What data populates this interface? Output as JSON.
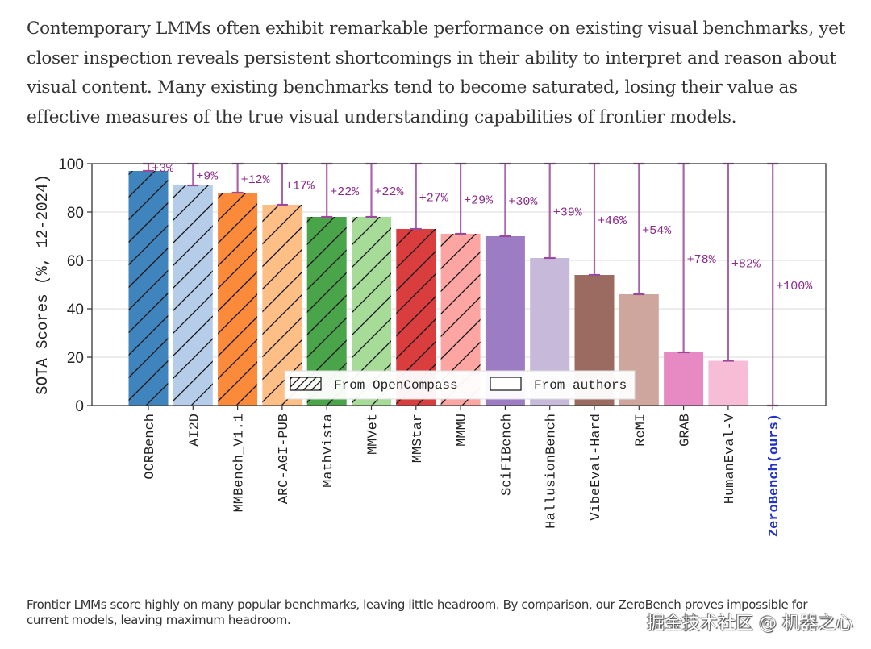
{
  "intro_paragraph": "Contemporary LMMs often exhibit remarkable performance on existing visual benchmarks, yet closer inspection reveals persistent shortcomings in their ability to interpret and reason about visual content. Many existing benchmarks tend to become saturated, losing their value as effective measures of the true visual understanding capabilities of frontier models.",
  "caption": "Frontier LMMs score highly on many popular benchmarks, leaving little headroom. By comparison, our ZeroBench proves impossible for current models, leaving maximum headroom.",
  "watermark": "掘金技术社区 @ 机器之心",
  "chart_data": {
    "type": "bar",
    "title": "",
    "xlabel": "",
    "ylabel": "SOTA Scores (%, 12-2024)",
    "ylim": [
      0,
      100
    ],
    "yticks": [
      0,
      20,
      40,
      60,
      80,
      100
    ],
    "grid": "horizontal",
    "legend_position": "bottom-center",
    "legend": [
      {
        "label": "From OpenCompass",
        "style": "hatched"
      },
      {
        "label": "From authors",
        "style": "solid"
      }
    ],
    "headroom_color": "#9b4a9b",
    "highlight_label_color": "#2233cc",
    "categories": [
      "OCRBench",
      "AI2D",
      "MMBench_V1.1",
      "ARC-AGI-PUB",
      "MathVista",
      "MMVet",
      "MMStar",
      "MMMU",
      "SciFIBench",
      "HallusionBench",
      "VibeEval-Hard",
      "ReMI",
      "GRAB",
      "HumanEval-V",
      "ZeroBench(ours)"
    ],
    "values": [
      97,
      91,
      88,
      83,
      78,
      78,
      73,
      71,
      70,
      61,
      54,
      46,
      22,
      18.5,
      0
    ],
    "headroom_labels": [
      "+3%",
      "+9%",
      "+12%",
      "+17%",
      "+22%",
      "+22%",
      "+27%",
      "+29%",
      "+30%",
      "+39%",
      "+46%",
      "+54%",
      "+78%",
      "+82%",
      "+100%"
    ],
    "source": [
      "OpenCompass",
      "OpenCompass",
      "OpenCompass",
      "OpenCompass",
      "OpenCompass",
      "OpenCompass",
      "OpenCompass",
      "OpenCompass",
      "authors",
      "authors",
      "authors",
      "authors",
      "authors",
      "authors",
      "authors"
    ],
    "colors": [
      "#3f84bd",
      "#b5cde8",
      "#fb8a3a",
      "#fdbf86",
      "#4aa54a",
      "#a6dc98",
      "#d93d3d",
      "#fca5a3",
      "#9c7cc2",
      "#c7b9da",
      "#9b6b61",
      "#cea69e",
      "#e78ac3",
      "#f7bcd6",
      "#ffffff"
    ],
    "highlight_index": 14
  }
}
